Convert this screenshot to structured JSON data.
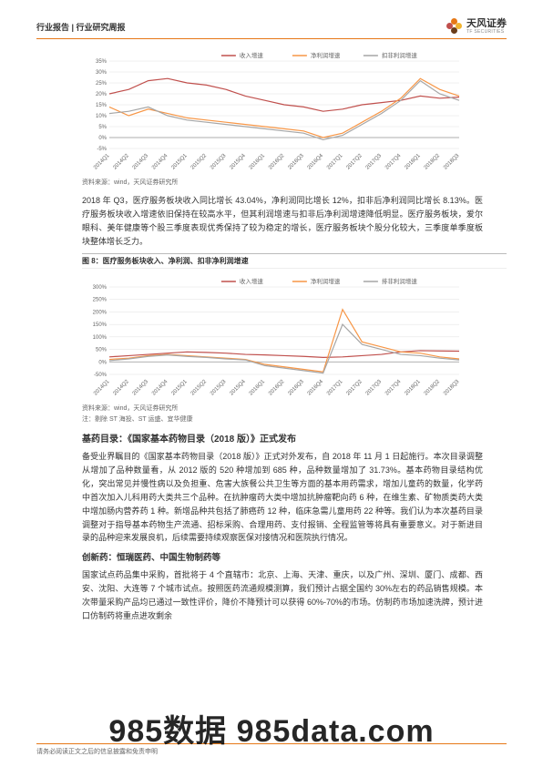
{
  "header": {
    "left": "行业报告 | 行业研究周报",
    "brand_cn": "天风证券",
    "brand_en": "TF SECURITIES"
  },
  "chart1": {
    "type": "line",
    "series_names": [
      "收入增速",
      "净利润增速",
      "扣非利润增速"
    ],
    "series_colors": [
      "#c0504d",
      "#f79646",
      "#a6a6a6"
    ],
    "x_labels": [
      "2014Q1",
      "2014Q2",
      "2014Q3",
      "2014Q4",
      "2015Q1",
      "2015Q2",
      "2015Q3",
      "2015Q4",
      "2016Q1",
      "2016Q2",
      "2016Q3",
      "2016Q4",
      "2017Q1",
      "2017Q2",
      "2017Q3",
      "2017Q4",
      "2018Q1",
      "2018Q2",
      "2018Q3"
    ],
    "ylim": [
      -5,
      35
    ],
    "ytick_step": 5,
    "ylabels": [
      "-5%",
      "0%",
      "5%",
      "10%",
      "15%",
      "20%",
      "25%",
      "30%",
      "35%"
    ],
    "data": {
      "s1": [
        20,
        22,
        26,
        27,
        25,
        24,
        22,
        19,
        17,
        15,
        14,
        12,
        13,
        15,
        16,
        17,
        19,
        18,
        18.5
      ],
      "s2": [
        14,
        10,
        13,
        11,
        9,
        8,
        7,
        6,
        5,
        4,
        3,
        0,
        2,
        7,
        12,
        18,
        27,
        22,
        19
      ],
      "s3": [
        11,
        12,
        14,
        10,
        8,
        7,
        6,
        5,
        4,
        3,
        2,
        -1,
        1,
        6,
        11,
        17,
        26,
        20,
        17
      ]
    },
    "grid_color": "#e0e0e0",
    "background_color": "#ffffff",
    "x_fontsize": 6,
    "y_fontsize": 6
  },
  "source1": "资料来源：wind，天风证券研究所",
  "para1": "2018 年 Q3，医疗服务板块收入同比增长 43.04%，净利润同比增长 12%，扣非后净利润同比增长 8.13%。医疗服务板块收入增速依旧保持在较高水平，但其利润增速与扣非后净利润增速降低明显。医疗服务板块，爱尔眼科、美年健康等个股三季度表现优秀保持了较为稳定的增长，医疗服务板块个股分化较大，三季度单季度板块整体增长乏力。",
  "figcap8": "图 8：医疗服务板块收入、净利润、扣非净利润增速",
  "chart2": {
    "type": "line",
    "series_names": [
      "收入增速",
      "净利润增速",
      "排非利润增速"
    ],
    "series_colors": [
      "#c0504d",
      "#f79646",
      "#a6a6a6"
    ],
    "x_labels": [
      "2014Q1",
      "2014Q2",
      "2014Q3",
      "2014Q4",
      "2015Q1",
      "2015Q2",
      "2015Q3",
      "2015Q4",
      "2016Q1",
      "2016Q2",
      "2016Q3",
      "2016Q4",
      "2017Q1",
      "2017Q2",
      "2017Q3",
      "2017Q4",
      "2018Q1",
      "2018Q2",
      "2018Q3"
    ],
    "ylim": [
      -50,
      300
    ],
    "ytick_step": 50,
    "ylabels": [
      "-50%",
      "0%",
      "50%",
      "100%",
      "150%",
      "200%",
      "250%",
      "300%"
    ],
    "data": {
      "s1": [
        20,
        25,
        30,
        35,
        40,
        38,
        35,
        30,
        28,
        25,
        22,
        18,
        20,
        25,
        30,
        40,
        45,
        44,
        43
      ],
      "s2": [
        10,
        15,
        25,
        30,
        25,
        20,
        15,
        10,
        -10,
        -20,
        -30,
        -40,
        210,
        80,
        60,
        40,
        35,
        20,
        12
      ],
      "s3": [
        5,
        12,
        22,
        28,
        22,
        18,
        12,
        8,
        -15,
        -25,
        -35,
        -45,
        150,
        70,
        50,
        30,
        25,
        15,
        8
      ]
    },
    "grid_color": "#e0e0e0",
    "background_color": "#ffffff",
    "x_fontsize": 6,
    "y_fontsize": 6
  },
  "source2": "资料来源：wind，天风证券研究所",
  "note2": "注：剔除 ST 海投、ST 运盛、宜华健康",
  "heading1": "基药目录：《国家基本药物目录（2018 版）》正式发布",
  "para2": "备受业界瞩目的《国家基本药物目录（2018 版）》正式对外发布，自 2018 年 11 月 1 日起施行。本次目录调整从增加了品种数量看，从 2012 版的 520 种增加到 685 种，品种数量增加了 31.73%。基本药物目录结构优化，突出常见并慢性病以及负担重、危害大族餐公共卫生等方面的基本用药需求，增加儿童药的数量，化学药中首次加入儿科用药大类共三个品种。在抗肿瘤药大类中增加抗肿瘤靶向药 6 种，在维生素、矿物质类药大类中增加肠内营养药 1 种。新增品种共包括了肺癌药 12 种，临床急需儿童用药 22 种等。我们认为本次基药目录调整对于指导基本药物生产流通、招标采购、合理用药、支付报销、全程监管等将具有重要意义。对于新进目录的品种迎来发展良机，后续需要持续观察医保对接情况和医院执行情况。",
  "heading2": "创新药：恒瑞医药、中国生物制药等",
  "para3": "国家试点药品集中采购，首批将于 4 个直辖市：北京、上海、天津、重庆，以及广州、深圳、厦门、成都、西安、沈阳、大连等 7 个城市试点。按照医药流通规模测算，我们预计占据全国约 30%左右的药品销售规模。本次带量采购产品均已通过一致性评价，降价不降预计可以获得 60%-70%的市场。仿制药市场加速洗牌，预计进口仿制药将重点进攻剩余",
  "footer": "请务必阅读正文之后的信息披露和免责申明",
  "watermark": "985数据  985data.com",
  "petals": [
    "#e67817",
    "#c0504d",
    "#6a3d1a",
    "#f2b430"
  ]
}
